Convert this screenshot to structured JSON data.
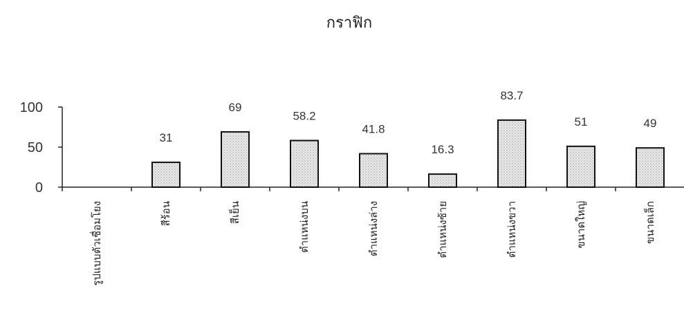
{
  "chart_data": {
    "type": "bar",
    "title": "กราฟิก",
    "xlabel": "",
    "ylabel": "",
    "ylim": [
      0,
      100
    ],
    "yticks": [
      0,
      50,
      100
    ],
    "grid": false,
    "categories": [
      "รูปแบบตัวเชื่อมโยง",
      "สีร้อน",
      "สีเย็น",
      "ตำแหน่งบน",
      "ตำแหน่งล่าง",
      "ตำแหน่งซ้าย",
      "ตำแหน่งขวา",
      "ขนาดใหญ่",
      "ขนาดเล็ก"
    ],
    "values": [
      0,
      31,
      69,
      58.2,
      41.8,
      16.3,
      83.7,
      51,
      49
    ],
    "data_labels": [
      "",
      "31",
      "69",
      "58.2",
      "41.8",
      "16.3",
      "83.7",
      "51",
      "49"
    ],
    "bar_fill": "#dcdcdc",
    "bar_stroke": "#111111"
  }
}
